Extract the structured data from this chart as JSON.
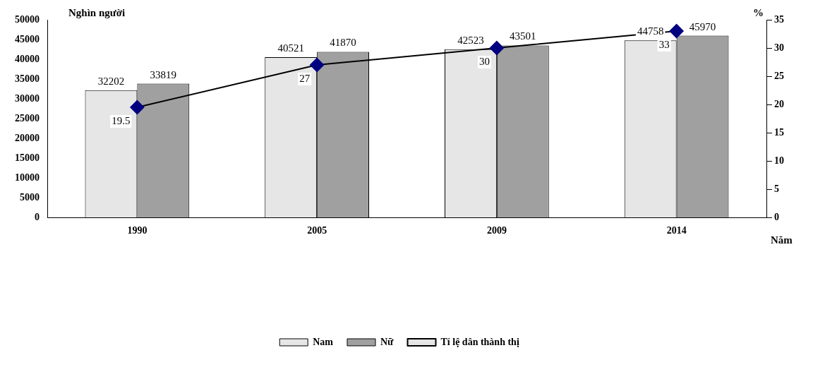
{
  "chart_data": {
    "type": "bar",
    "ylabel": "Nghìn người",
    "y2label": "%",
    "xlabel": "Năm",
    "categories": [
      "1990",
      "2005",
      "2009",
      "2014"
    ],
    "series": [
      {
        "name": "Nam",
        "color": "#e6e6e6",
        "values": [
          32202,
          40521,
          42523,
          44758
        ]
      },
      {
        "name": "Nữ",
        "color": "#a0a0a0",
        "values": [
          33819,
          41870,
          43501,
          45970
        ]
      },
      {
        "name": "Tỉ lệ dân thành thị",
        "type": "line",
        "axis": "y2",
        "color": "#000080",
        "values": [
          19.5,
          27,
          30,
          33
        ]
      }
    ],
    "ylim": [
      0,
      50000
    ],
    "yticks": [
      0,
      5000,
      10000,
      15000,
      20000,
      25000,
      30000,
      35000,
      40000,
      45000,
      50000
    ],
    "y2lim": [
      0,
      35
    ],
    "y2ticks": [
      0,
      5,
      10,
      15,
      20,
      25,
      30,
      35
    ],
    "data_labels": true,
    "grid": false,
    "legend": "bottom",
    "marker": "diamond",
    "line_style": "solid"
  }
}
